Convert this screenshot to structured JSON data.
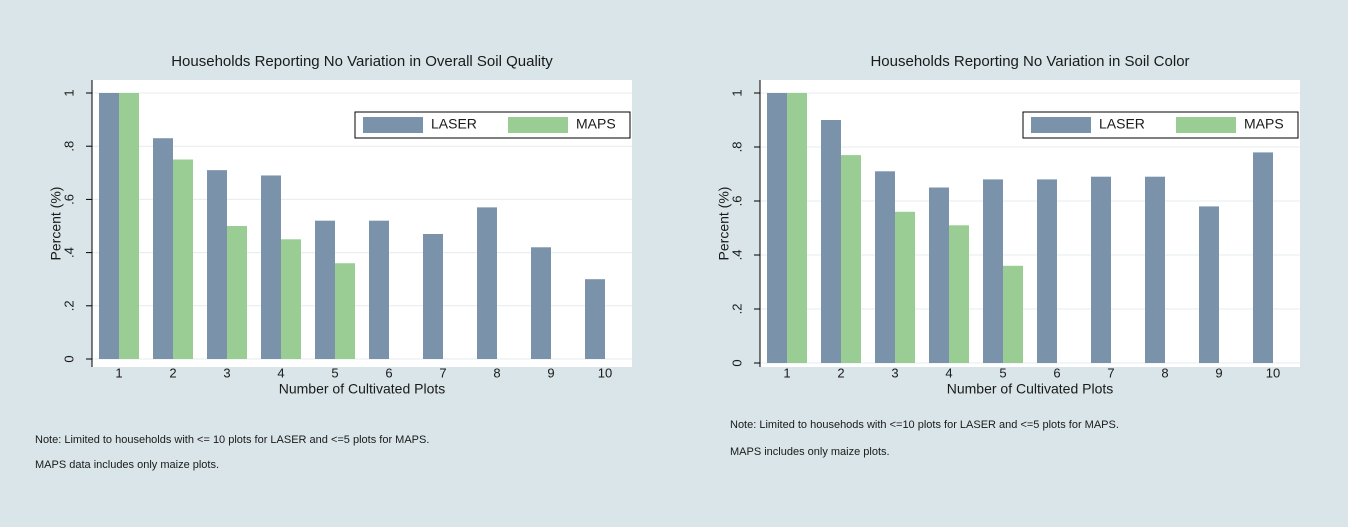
{
  "chart_data": [
    {
      "type": "bar",
      "title": "Households Reporting No Variation in Overall Soil Quality",
      "x_label": "Number of Cultivated Plots",
      "y_label": "Percent (%)",
      "categories": [
        "1",
        "2",
        "3",
        "4",
        "5",
        "6",
        "7",
        "8",
        "9",
        "10"
      ],
      "series": [
        {
          "name": "LASER",
          "color": "#7a93ab",
          "values": [
            1,
            0.83,
            0.71,
            0.69,
            0.52,
            0.52,
            0.47,
            0.57,
            0.42,
            0.3
          ]
        },
        {
          "name": "MAPS",
          "color": "#9acd94",
          "values": [
            1,
            0.75,
            0.5,
            0.45,
            0.36,
            null,
            null,
            null,
            null,
            null
          ]
        }
      ],
      "ylim": [
        0,
        1
      ],
      "yticks": [
        0,
        {
          "value": 0.2,
          "label": ".2"
        },
        {
          "value": 0.4,
          "label": ".4"
        },
        {
          "value": 0.6,
          "label": ".6"
        },
        {
          "value": 0.8,
          "label": ".8"
        },
        1
      ],
      "grid": true,
      "legend": "top-right",
      "notes": [
        "Note: Limited to households with <= 10 plots for LASER and <=5 plots for MAPS.",
        "MAPS data includes only maize plots."
      ]
    },
    {
      "type": "bar",
      "title": "Households Reporting No Variation in Soil Color",
      "x_label": "Number of Cultivated Plots",
      "y_label": "Percent (%)",
      "categories": [
        "1",
        "2",
        "3",
        "4",
        "5",
        "6",
        "7",
        "8",
        "9",
        "10"
      ],
      "series": [
        {
          "name": "LASER",
          "color": "#7a93ab",
          "values": [
            1,
            0.9,
            0.71,
            0.65,
            0.68,
            0.68,
            0.69,
            0.69,
            0.58,
            0.78
          ]
        },
        {
          "name": "MAPS",
          "color": "#9acd94",
          "values": [
            1,
            0.77,
            0.56,
            0.51,
            0.36,
            null,
            null,
            null,
            null,
            null
          ]
        }
      ],
      "ylim": [
        0,
        1
      ],
      "yticks": [
        0,
        {
          "value": 0.2,
          "label": ".2"
        },
        {
          "value": 0.4,
          "label": ".4"
        },
        {
          "value": 0.6,
          "label": ".6"
        },
        {
          "value": 0.8,
          "label": ".8"
        },
        1
      ],
      "grid": true,
      "legend": "top-right",
      "notes": [
        "Note: Limited to househods with <=10 plots for LASER and <=5 plots for MAPS.",
        "MAPS includes only maize plots."
      ]
    }
  ]
}
